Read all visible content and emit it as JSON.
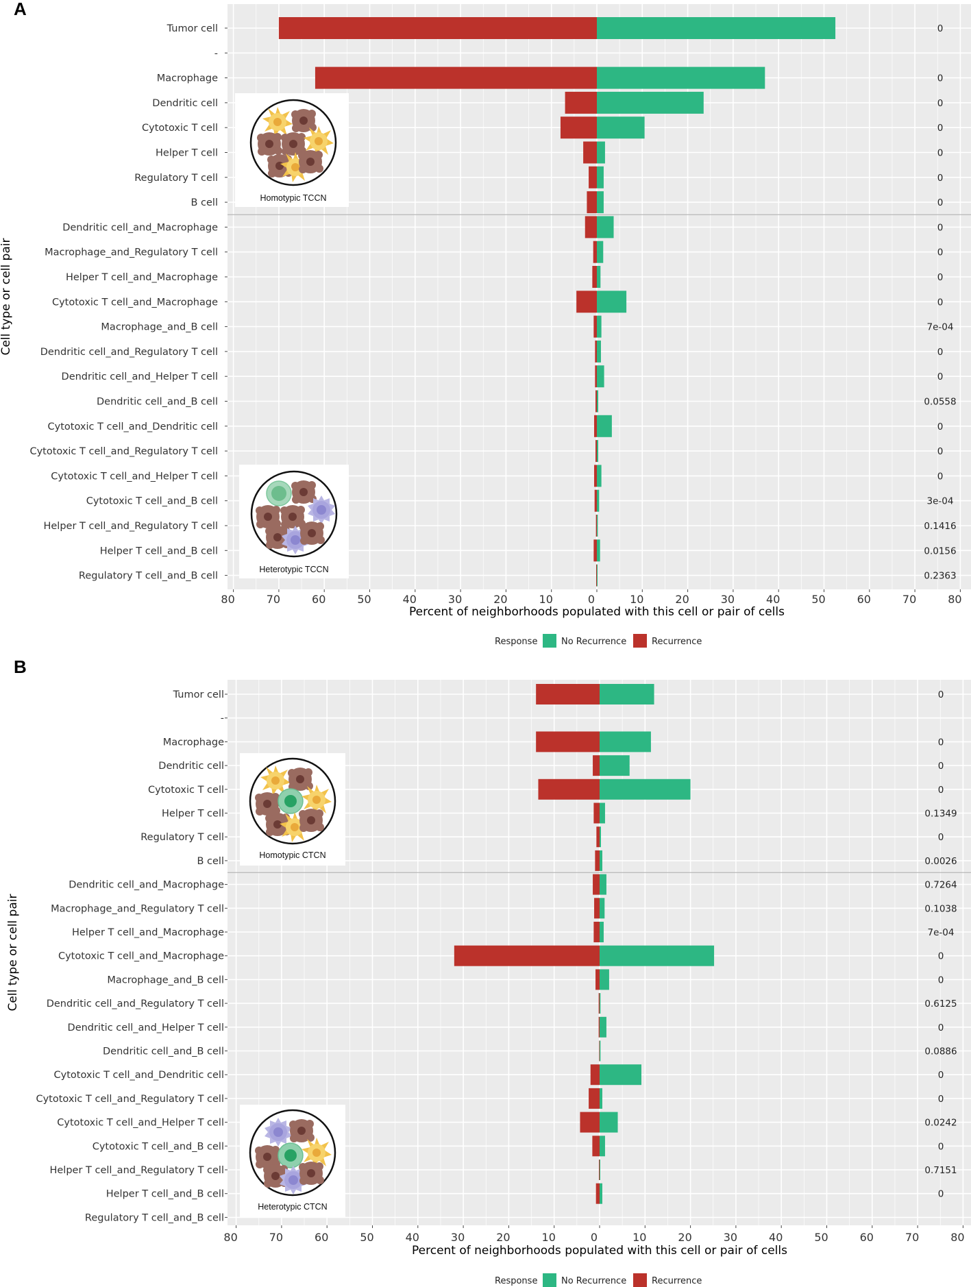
{
  "colors": {
    "no_recurrence": "#2db783",
    "recurrence": "#bb322b",
    "panel_bg": "#ebebeb",
    "grid": "#ffffff"
  },
  "chart_data": [
    {
      "panel": "A",
      "type": "bar",
      "orientation": "horizontal-diverging",
      "xlabel": "Percent of neighborhoods populated with this cell or pair of cells",
      "ylabel": "Cell type or cell pair",
      "x_ticks": [
        "80",
        "70",
        "60",
        "50",
        "40",
        "30",
        "20",
        "10",
        "0",
        "10",
        "20",
        "30",
        "40",
        "50",
        "60",
        "70",
        "80"
      ],
      "xlim": [
        -80,
        80
      ],
      "categories": [
        "Tumor cell",
        "-",
        "Macrophage",
        "Dendritic cell",
        "Cytotoxic T cell",
        "Helper T cell",
        "Regulatory T cell",
        "B cell",
        "Dendritic cell_and_Macrophage",
        "Macrophage_and_Regulatory T cell",
        "Helper T cell_and_Macrophage",
        "Cytotoxic T cell_and_Macrophage",
        "Macrophage_and_B cell",
        "Dendritic cell_and_Regulatory T cell",
        "Dendritic cell_and_Helper T cell",
        "Dendritic cell_and_B cell",
        "Cytotoxic T cell_and_Dendritic cell",
        "Cytotoxic T cell_and_Regulatory T cell",
        "Cytotoxic T cell_and_Helper T cell",
        "Cytotoxic T cell_and_B cell",
        "Helper T cell_and_Regulatory T cell",
        "Helper T cell_and_B cell",
        "Regulatory T cell_and_B cell"
      ],
      "series": [
        {
          "name": "Recurrence",
          "values": [
            70,
            null,
            62,
            7,
            8,
            3,
            1.8,
            2.2,
            2.6,
            0.8,
            1,
            4.5,
            0.7,
            0.4,
            0.4,
            0.3,
            0.6,
            0.3,
            0.6,
            0.5,
            0.2,
            0.7,
            0.15
          ]
        },
        {
          "name": "No Recurrence",
          "values": [
            52.5,
            null,
            37,
            23.5,
            10.5,
            1.8,
            1.5,
            1.5,
            3.7,
            1.4,
            0.8,
            6.5,
            1,
            0.9,
            1.6,
            0.3,
            3.3,
            0.3,
            1,
            0.5,
            0.2,
            0.7,
            0.15
          ]
        }
      ],
      "p_values": [
        "0",
        "",
        "0",
        "0",
        "0",
        "0",
        "0",
        "0",
        "0",
        "0",
        "0",
        "0",
        "7e-04",
        "0",
        "0",
        "0.0558",
        "0",
        "0",
        "0",
        "3e-04",
        "0.1416",
        "0.0156",
        "0.2363"
      ],
      "insets": [
        "Homotypic TCCN",
        "Heterotypic TCCN"
      ],
      "legend": {
        "title": "Response",
        "entries": [
          "No Recurrence",
          "Recurrence"
        ],
        "position": "bottom"
      }
    },
    {
      "panel": "B",
      "type": "bar",
      "orientation": "horizontal-diverging",
      "xlabel": "Percent of neighborhoods populated with this cell or pair of cells",
      "ylabel": "Cell type or cell pair",
      "x_ticks": [
        "80",
        "70",
        "60",
        "50",
        "40",
        "30",
        "20",
        "10",
        "0",
        "10",
        "20",
        "30",
        "40",
        "50",
        "60",
        "70",
        "80"
      ],
      "xlim": [
        -80,
        80
      ],
      "categories": [
        "Tumor cell",
        "-",
        "Macrophage",
        "Dendritic cell",
        "Cytotoxic T cell",
        "Helper T cell",
        "Regulatory T cell",
        "B cell",
        "Dendritic cell_and_Macrophage",
        "Macrophage_and_Regulatory T cell",
        "Helper T cell_and_Macrophage",
        "Cytotoxic T cell_and_Macrophage",
        "Macrophage_and_B cell",
        "Dendritic cell_and_Regulatory T cell",
        "Dendritic cell_and_Helper T cell",
        "Dendritic cell_and_B cell",
        "Cytotoxic T cell_and_Dendritic cell",
        "Cytotoxic T cell_and_Regulatory T cell",
        "Cytotoxic T cell_and_Helper T cell",
        "Cytotoxic T cell_and_B cell",
        "Helper T cell_and_Regulatory T cell",
        "Helper T cell_and_B cell",
        "Regulatory T cell_and_B cell"
      ],
      "series": [
        {
          "name": "Recurrence",
          "values": [
            14,
            null,
            14,
            1.5,
            13.5,
            1.3,
            0.7,
            1,
            1.5,
            1.2,
            1.3,
            32,
            0.9,
            0.2,
            0.2,
            0.1,
            2,
            2.4,
            4.3,
            1.6,
            0.15,
            0.8,
            0
          ]
        },
        {
          "name": "No Recurrence",
          "values": [
            12,
            null,
            11.3,
            6.6,
            20,
            1.2,
            0.3,
            0.6,
            1.5,
            1.1,
            0.9,
            25.2,
            2.1,
            0.2,
            1.5,
            0.2,
            9.2,
            0.6,
            4,
            1.2,
            0.15,
            0.6,
            0
          ]
        }
      ],
      "p_values": [
        "0",
        "",
        "0",
        "0",
        "0",
        "0.1349",
        "0",
        "0.0026",
        "0.7264",
        "0.1038",
        "7e-04",
        "0",
        "0",
        "0.6125",
        "0",
        "0.0886",
        "0",
        "0",
        "0.0242",
        "0",
        "0.7151",
        "0",
        ""
      ],
      "insets": [
        "Homotypic CTCN",
        "Heterotypic CTCN"
      ],
      "legend": {
        "title": "Response",
        "entries": [
          "No Recurrence",
          "Recurrence"
        ],
        "position": "bottom"
      }
    }
  ]
}
